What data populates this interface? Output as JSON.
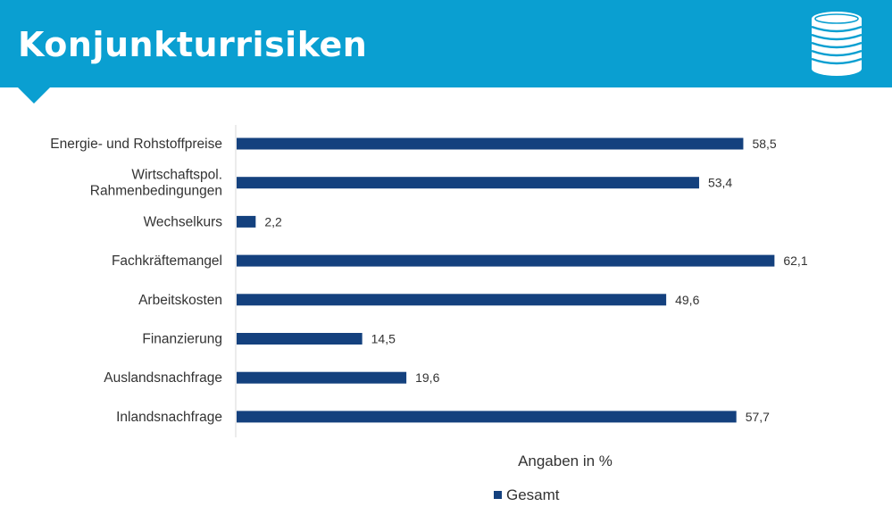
{
  "header": {
    "title": "Konjunkturrisiken",
    "icon": "coins-stack-icon",
    "background_color": "#0a9fd1"
  },
  "chart_data": {
    "type": "bar",
    "orientation": "horizontal",
    "categories": [
      [
        "Energie- und Rohstoffpreise"
      ],
      [
        "Wirtschaftspol.",
        "Rahmenbedingungen"
      ],
      [
        "Wechselkurs"
      ],
      [
        "Fachkräftemangel"
      ],
      [
        "Arbeitskosten"
      ],
      [
        "Finanzierung"
      ],
      [
        "Auslandsnachfrage"
      ],
      [
        "Inlandsnachfrage"
      ]
    ],
    "series": [
      {
        "name": "Gesamt",
        "color": "#14417e",
        "values": [
          58.5,
          53.4,
          2.2,
          62.1,
          49.6,
          14.5,
          19.6,
          57.7
        ],
        "value_labels": [
          "58,5",
          "53,4",
          "2,2",
          "62,1",
          "49,6",
          "14,5",
          "19,6",
          "57,7"
        ]
      }
    ],
    "xlabel": "Angaben in %",
    "xlim": [
      0,
      65
    ],
    "grid": false,
    "legend_position": "bottom"
  }
}
